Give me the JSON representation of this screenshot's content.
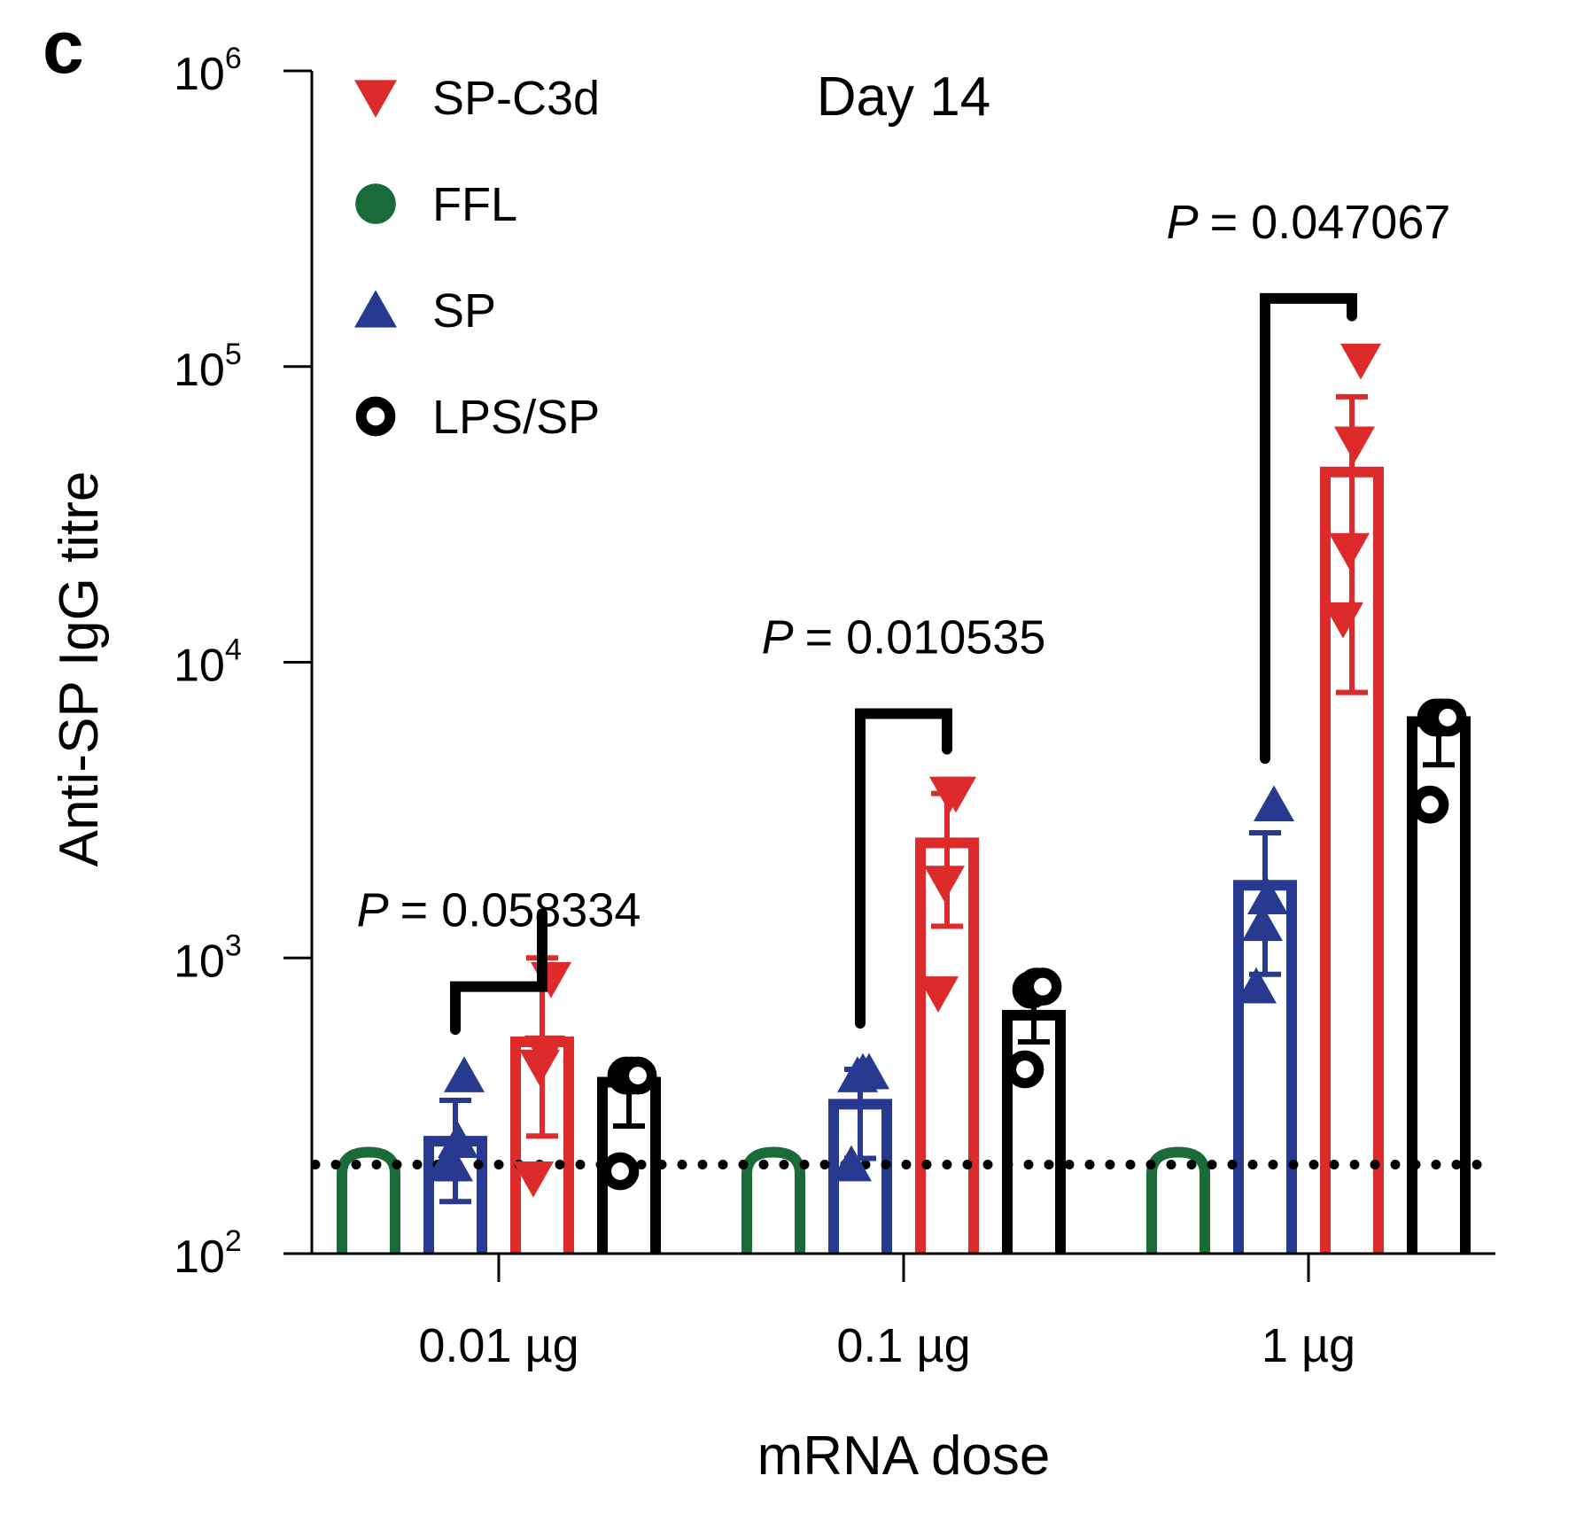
{
  "chart_data": {
    "type": "bar",
    "panel_label": "c",
    "title": "Day 14",
    "xlabel": "mRNA dose",
    "ylabel": "Anti-SP IgG titre",
    "yscale": "log",
    "ylim": [
      100,
      1000000
    ],
    "yticks": [
      {
        "value": 100,
        "base": "10",
        "exp": "2"
      },
      {
        "value": 1000,
        "base": "10",
        "exp": "3"
      },
      {
        "value": 10000,
        "base": "10",
        "exp": "4"
      },
      {
        "value": 100000,
        "base": "10",
        "exp": "5"
      },
      {
        "value": 1000000,
        "base": "10",
        "exp": "6"
      }
    ],
    "categories": [
      "0.01 µg",
      "0.1 µg",
      "1 µg"
    ],
    "detection_limit": 200,
    "legend_position": "top-left",
    "series": [
      {
        "name": "SP-C3d",
        "marker": "triangle-down",
        "color": "#dd2a2a",
        "means": [
          520,
          2450,
          44000
        ],
        "error": [
          [
            250,
            1280,
            7900
          ],
          [
            1000,
            3600,
            79000
          ]
        ],
        "points": [
          [
            180,
            430,
            480,
            850
          ],
          [
            760,
            1800,
            3600,
            3600
          ],
          [
            14000,
            24000,
            55000,
            105000
          ]
        ]
      },
      {
        "name": "FFL",
        "marker": "circle-filled",
        "color": "#1b6b3a",
        "means": [
          200,
          200,
          200
        ],
        "error": [
          null,
          null,
          null
        ],
        "points": [
          [
            200,
            200,
            200,
            200
          ],
          [
            200,
            200,
            200,
            200
          ],
          [
            200,
            200,
            200,
            200
          ]
        ]
      },
      {
        "name": "SP",
        "marker": "triangle-up",
        "color": "#283a8f",
        "means": [
          240,
          320,
          1760
        ],
        "error": [
          [
            150,
            210,
            880
          ],
          [
            330,
            420,
            2650
          ]
        ],
        "points": [
          [
            200,
            200,
            240,
            400
          ],
          [
            200,
            400,
            410,
            410
          ],
          [
            800,
            1300,
            1600,
            3300
          ]
        ]
      },
      {
        "name": "LPS/SP",
        "marker": "circle-open",
        "color": "#000000",
        "means": [
          380,
          640,
          6300
        ],
        "error": [
          [
            270,
            520,
            4500
          ],
          [
            400,
            780,
            6500
          ]
        ],
        "points": [
          [
            190,
            400,
            400,
            400
          ],
          [
            420,
            780,
            800,
            800
          ],
          [
            3300,
            6500,
            6500,
            6500
          ]
        ]
      }
    ],
    "bar_order": [
      "FFL",
      "SP",
      "SP-C3d",
      "LPS/SP"
    ],
    "comparisons": [
      {
        "category": "0.01 µg",
        "from": "SP",
        "to": "SP-C3d",
        "label": "P = 0.058334",
        "p_symbol": "P",
        "p_value": "= 0.058334",
        "bracket_top": 800
      },
      {
        "category": "0.1 µg",
        "from": "SP",
        "to": "SP-C3d",
        "label": "P = 0.010535",
        "p_symbol": "P",
        "p_value": "= 0.010535",
        "bracket_top": 6700
      },
      {
        "category": "1 µg",
        "from": "SP",
        "to": "SP-C3d",
        "label": "P = 0.047067",
        "p_symbol": "P",
        "p_value": "= 0.047067",
        "bracket_top": 170000
      }
    ]
  }
}
